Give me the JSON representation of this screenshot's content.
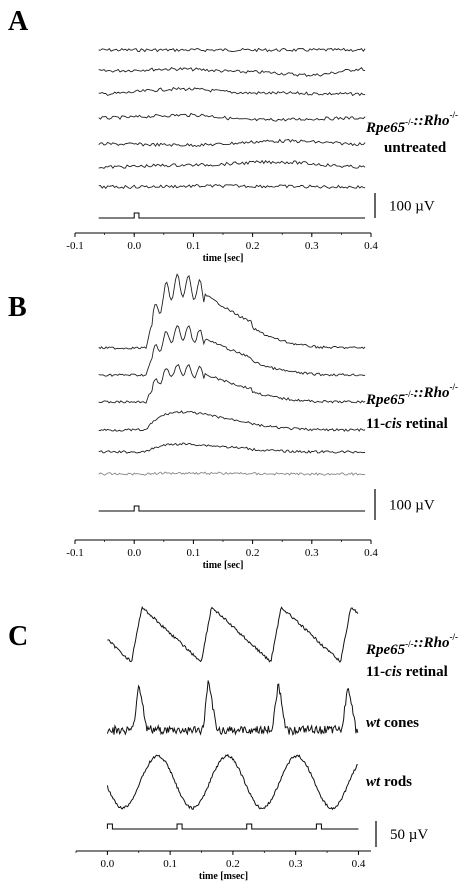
{
  "chart_data": [
    {
      "panel": "A",
      "type": "line",
      "xlabel": "time [sec]",
      "xlim": [
        -0.1,
        0.4
      ],
      "xticks": [
        "-0.1",
        "0.0",
        "0.1",
        "0.2",
        "0.3",
        "0.4"
      ],
      "trace_labels": [
        {
          "parts": [
            {
              "text": "Rpe65",
              "italic": true
            },
            {
              "text": "-/-",
              "sup": true
            },
            {
              "text": "::",
              "italic": true
            },
            {
              "text": "Rho",
              "italic": true
            },
            {
              "text": "-/-",
              "sup": true
            }
          ]
        },
        {
          "parts": [
            {
              "text": "untreated",
              "italic": false
            }
          ]
        }
      ],
      "scale_bar": "100 µV",
      "series": [
        {
          "x": [
            -0.06,
            0.39
          ],
          "y": [
            0,
            0
          ],
          "shape": "flat"
        },
        {
          "x": [
            -0.06,
            0.07,
            0.2,
            0.3,
            0.39
          ],
          "y": [
            0,
            2,
            -1,
            -4,
            2
          ],
          "shape": "slow"
        },
        {
          "x": [
            -0.06,
            0.08,
            0.2,
            0.39
          ],
          "y": [
            0,
            5,
            1,
            0
          ],
          "shape": "slow"
        },
        {
          "x": [
            -0.06,
            0.1,
            0.2,
            0.39
          ],
          "y": [
            0,
            3,
            -2,
            0
          ],
          "shape": "slow"
        },
        {
          "x": [
            -0.06,
            0.1,
            0.25,
            0.39
          ],
          "y": [
            0,
            -1,
            3,
            0
          ],
          "shape": "slow"
        },
        {
          "x": [
            -0.06,
            0.1,
            0.24,
            0.39
          ],
          "y": [
            0,
            2,
            5,
            0
          ],
          "shape": "slow"
        },
        {
          "x": [
            -0.06,
            0.15,
            0.39
          ],
          "y": [
            0,
            1,
            0
          ],
          "shape": "slow"
        }
      ],
      "stimulus": {
        "onset": 0.0,
        "width": 0.008
      }
    },
    {
      "panel": "B",
      "type": "line",
      "xlabel": "time [sec]",
      "xlim": [
        -0.1,
        0.4
      ],
      "xticks": [
        "-0.1",
        "0.0",
        "0.1",
        "0.2",
        "0.3",
        "0.4"
      ],
      "trace_labels": [
        {
          "parts": [
            {
              "text": "Rpe65",
              "italic": true
            },
            {
              "text": "-/-",
              "sup": true
            },
            {
              "text": "::",
              "italic": true
            },
            {
              "text": "Rho",
              "italic": true
            },
            {
              "text": "-/-",
              "sup": true
            }
          ]
        },
        {
          "parts": [
            {
              "text": "11-",
              "italic": false
            },
            {
              "text": "cis",
              "italic": true
            },
            {
              "text": " retinal",
              "italic": false
            }
          ]
        }
      ],
      "scale_bar": "100 µV",
      "series": [
        {
          "amplitude": 62,
          "oscillatory": true
        },
        {
          "amplitude": 42,
          "oscillatory": true
        },
        {
          "amplitude": 32,
          "oscillatory": true
        },
        {
          "amplitude": 18,
          "oscillatory": false
        },
        {
          "amplitude": 8,
          "oscillatory": false
        },
        {
          "amplitude": 1,
          "oscillatory": false,
          "color": "#888888"
        }
      ],
      "stimulus": {
        "onset": 0.0,
        "width": 0.008
      }
    },
    {
      "panel": "C",
      "type": "line",
      "xlabel": "time [msec]",
      "xlim": [
        -0.05,
        0.42
      ],
      "xticks": [
        "0.0",
        "0.1",
        "0.2",
        "0.3",
        "0.4"
      ],
      "scale_bar": "50 µV",
      "series": [
        {
          "label_parts": [
            {
              "text": "Rpe65",
              "italic": true
            },
            {
              "text": "-/-",
              "sup": true
            },
            {
              "text": "::",
              "italic": true
            },
            {
              "text": "Rho",
              "italic": true
            },
            {
              "text": "-/-",
              "sup": true
            }
          ],
          "label_line2": [
            {
              "text": "11-",
              "italic": false
            },
            {
              "text": "cis",
              "italic": true
            },
            {
              "text": " retinal",
              "italic": false
            }
          ],
          "period": 0.111,
          "peak_phase": 0.055,
          "amplitude": 55,
          "shape": "sawtooth"
        },
        {
          "label_parts": [
            {
              "text": "wt",
              "italic": true
            },
            {
              "text": "  cones",
              "italic": false
            }
          ],
          "period": 0.111,
          "peak_phase": 0.05,
          "amplitude": 48,
          "shape": "spike"
        },
        {
          "label_parts": [
            {
              "text": "wt",
              "italic": true
            },
            {
              "text": "  rods",
              "italic": false
            }
          ],
          "period": 0.111,
          "peak_phase": 0.08,
          "amplitude": 52,
          "shape": "wave"
        }
      ],
      "stimulus": {
        "onsets": [
          0.0,
          0.111,
          0.222,
          0.333
        ],
        "width": 0.008
      }
    }
  ]
}
